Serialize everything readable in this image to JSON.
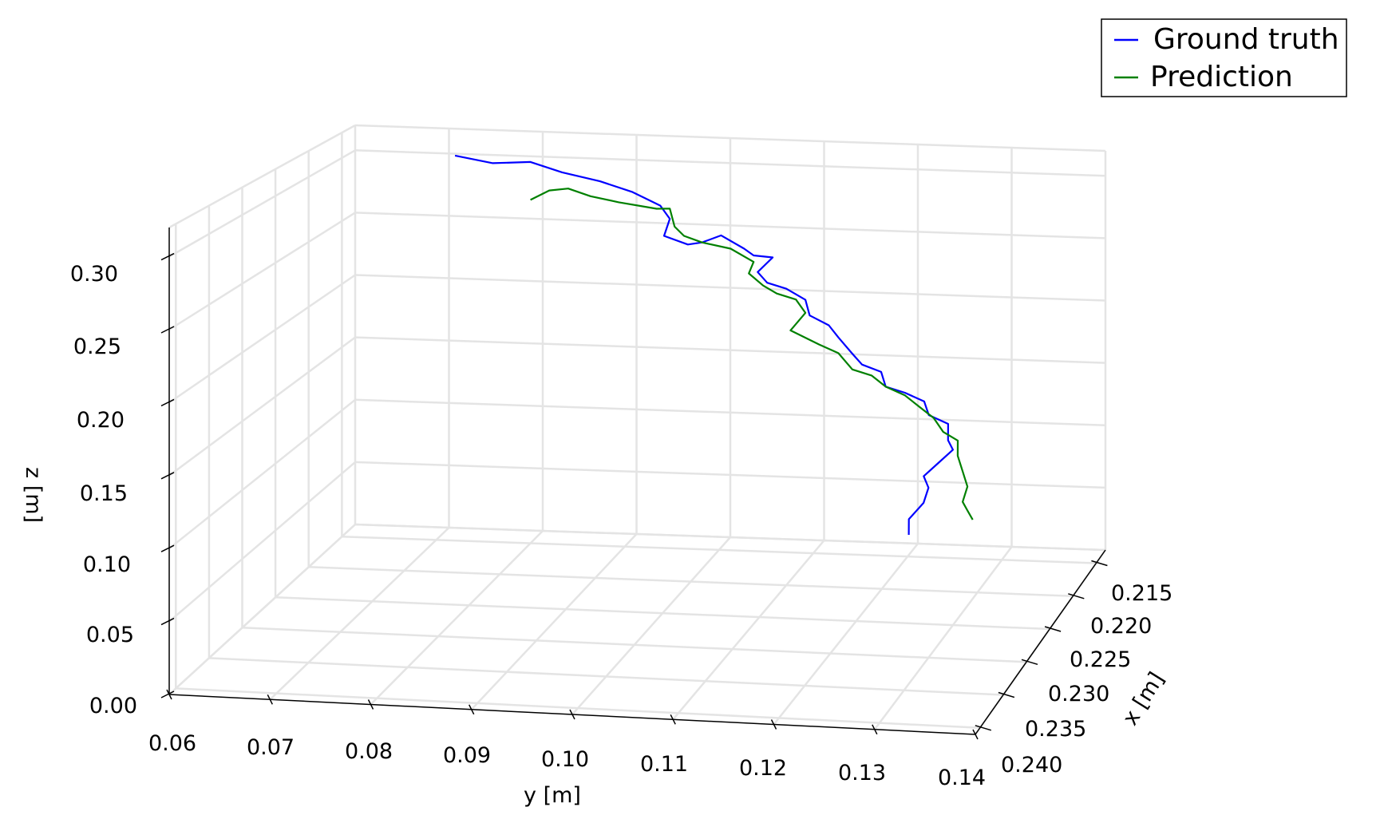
{
  "chart_data": {
    "type": "line",
    "projection": "3d",
    "xlabel": "x [m]",
    "ylabel": "y [m]",
    "zlabel": "z [m]",
    "x_ticks": [
      "0.215",
      "0.220",
      "0.225",
      "0.230",
      "0.235",
      "0.240"
    ],
    "y_ticks": [
      "0.06",
      "0.07",
      "0.08",
      "0.09",
      "0.10",
      "0.11",
      "0.12",
      "0.13",
      "0.14"
    ],
    "z_ticks": [
      "0.00",
      "0.05",
      "0.10",
      "0.15",
      "0.20",
      "0.25",
      "0.30"
    ],
    "xlim": [
      0.213,
      0.241
    ],
    "ylim": [
      0.06,
      0.14
    ],
    "zlim": [
      0.0,
      0.32
    ],
    "grid": true,
    "legend_position": "top-right",
    "series": [
      {
        "name": "Ground truth",
        "color": "#0000ff",
        "points": [
          [
            0.215,
            0.072,
            0.305
          ],
          [
            0.215,
            0.076,
            0.3
          ],
          [
            0.215,
            0.08,
            0.302
          ],
          [
            0.216,
            0.084,
            0.298
          ],
          [
            0.216,
            0.088,
            0.292
          ],
          [
            0.217,
            0.092,
            0.288
          ],
          [
            0.217,
            0.095,
            0.278
          ],
          [
            0.217,
            0.096,
            0.268
          ],
          [
            0.218,
            0.096,
            0.258
          ],
          [
            0.218,
            0.0985,
            0.252
          ],
          [
            0.218,
            0.1,
            0.254
          ],
          [
            0.218,
            0.102,
            0.26
          ],
          [
            0.219,
            0.105,
            0.254
          ],
          [
            0.219,
            0.106,
            0.249
          ],
          [
            0.219,
            0.108,
            0.248
          ],
          [
            0.22,
            0.107,
            0.24
          ],
          [
            0.22,
            0.108,
            0.232
          ],
          [
            0.22,
            0.11,
            0.228
          ],
          [
            0.22,
            0.112,
            0.22
          ],
          [
            0.221,
            0.113,
            0.212
          ],
          [
            0.221,
            0.115,
            0.205
          ],
          [
            0.221,
            0.116,
            0.196
          ],
          [
            0.222,
            0.118,
            0.188
          ],
          [
            0.222,
            0.119,
            0.18
          ],
          [
            0.222,
            0.121,
            0.175
          ],
          [
            0.223,
            0.122,
            0.168
          ],
          [
            0.223,
            0.124,
            0.164
          ],
          [
            0.223,
            0.126,
            0.158
          ],
          [
            0.224,
            0.127,
            0.152
          ],
          [
            0.224,
            0.129,
            0.146
          ],
          [
            0.225,
            0.1295,
            0.138
          ],
          [
            0.225,
            0.13,
            0.131
          ],
          [
            0.226,
            0.129,
            0.125
          ],
          [
            0.227,
            0.128,
            0.119
          ],
          [
            0.228,
            0.129,
            0.115
          ],
          [
            0.229,
            0.129,
            0.108
          ],
          [
            0.23,
            0.128,
            0.1
          ],
          [
            0.231,
            0.1285,
            0.093
          ]
        ]
      },
      {
        "name": "Prediction",
        "color": "#008000",
        "points": [
          [
            0.215,
            0.08,
            0.272
          ],
          [
            0.215,
            0.082,
            0.28
          ],
          [
            0.215,
            0.084,
            0.282
          ],
          [
            0.216,
            0.087,
            0.28
          ],
          [
            0.216,
            0.09,
            0.276
          ],
          [
            0.216,
            0.094,
            0.272
          ],
          [
            0.217,
            0.096,
            0.276
          ],
          [
            0.217,
            0.0965,
            0.262
          ],
          [
            0.217,
            0.0975,
            0.255
          ],
          [
            0.218,
            0.1,
            0.254
          ],
          [
            0.218,
            0.103,
            0.25
          ],
          [
            0.219,
            0.106,
            0.244
          ],
          [
            0.219,
            0.1055,
            0.235
          ],
          [
            0.219,
            0.107,
            0.226
          ],
          [
            0.22,
            0.109,
            0.224
          ],
          [
            0.22,
            0.111,
            0.22
          ],
          [
            0.22,
            0.112,
            0.21
          ],
          [
            0.221,
            0.111,
            0.2
          ],
          [
            0.221,
            0.114,
            0.19
          ],
          [
            0.221,
            0.116,
            0.184
          ],
          [
            0.222,
            0.118,
            0.176
          ],
          [
            0.222,
            0.12,
            0.172
          ],
          [
            0.223,
            0.122,
            0.168
          ],
          [
            0.223,
            0.124,
            0.162
          ],
          [
            0.224,
            0.126,
            0.158
          ],
          [
            0.224,
            0.1275,
            0.15
          ],
          [
            0.225,
            0.129,
            0.144
          ],
          [
            0.225,
            0.1305,
            0.138
          ],
          [
            0.226,
            0.131,
            0.131
          ],
          [
            0.227,
            0.132,
            0.124
          ],
          [
            0.228,
            0.133,
            0.117
          ],
          [
            0.229,
            0.133,
            0.11
          ],
          [
            0.23,
            0.134,
            0.108
          ],
          [
            0.231,
            0.135,
            0.106
          ]
        ]
      }
    ]
  }
}
